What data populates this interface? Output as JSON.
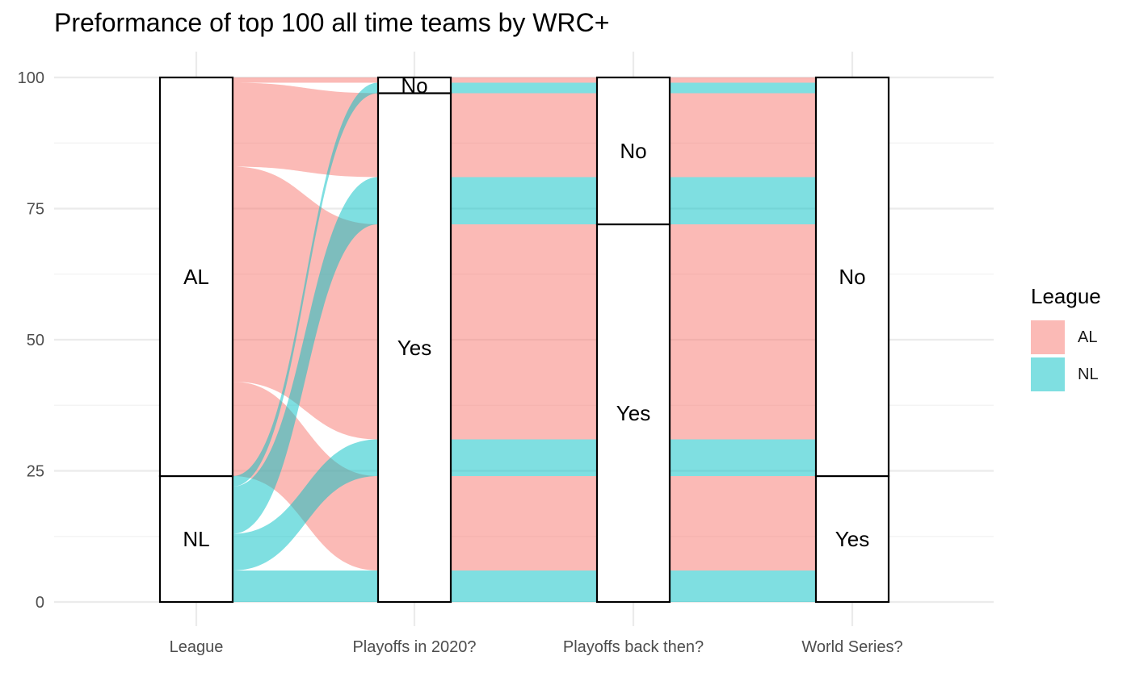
{
  "chart_data": {
    "type": "alluvial",
    "title": "Preformance of top 100 all time teams by WRC+",
    "xlabel": "",
    "ylabel": "",
    "ylim": [
      0,
      100
    ],
    "y_ticks": [
      0,
      25,
      50,
      75,
      100
    ],
    "grid": true,
    "legend": {
      "title": "League",
      "position": "right"
    },
    "axes": [
      "League",
      "Playoffs in 2020?",
      "Playoffs back then?",
      "World Series?"
    ],
    "series": [
      {
        "name": "AL",
        "color": "#F8766D"
      },
      {
        "name": "NL",
        "color": "#00BFC4"
      }
    ],
    "strata": [
      [
        {
          "label": "NL",
          "value": 24
        },
        {
          "label": "AL",
          "value": 76
        }
      ],
      [
        {
          "label": "Yes",
          "value": 97
        },
        {
          "label": "No",
          "value": 3
        }
      ],
      [
        {
          "label": "Yes",
          "value": 72
        },
        {
          "label": "No",
          "value": 28
        }
      ],
      [
        {
          "label": "Yes",
          "value": 24
        },
        {
          "label": "No",
          "value": 76
        }
      ]
    ],
    "flows": [
      {
        "group": "NL",
        "path": [
          "NL",
          "Yes",
          "Yes",
          "Yes"
        ],
        "value": 6
      },
      {
        "group": "AL",
        "path": [
          "AL",
          "Yes",
          "Yes",
          "Yes"
        ],
        "value": 18
      },
      {
        "group": "NL",
        "path": [
          "NL",
          "Yes",
          "Yes",
          "No"
        ],
        "value": 7
      },
      {
        "group": "AL",
        "path": [
          "AL",
          "Yes",
          "Yes",
          "No"
        ],
        "value": 41
      },
      {
        "group": "NL",
        "path": [
          "NL",
          "Yes",
          "No",
          "No"
        ],
        "value": 9
      },
      {
        "group": "AL",
        "path": [
          "AL",
          "Yes",
          "No",
          "No"
        ],
        "value": 16
      },
      {
        "group": "NL",
        "path": [
          "NL",
          "No",
          "No",
          "No"
        ],
        "value": 2
      },
      {
        "group": "AL",
        "path": [
          "AL",
          "No",
          "No",
          "No"
        ],
        "value": 1
      }
    ]
  }
}
